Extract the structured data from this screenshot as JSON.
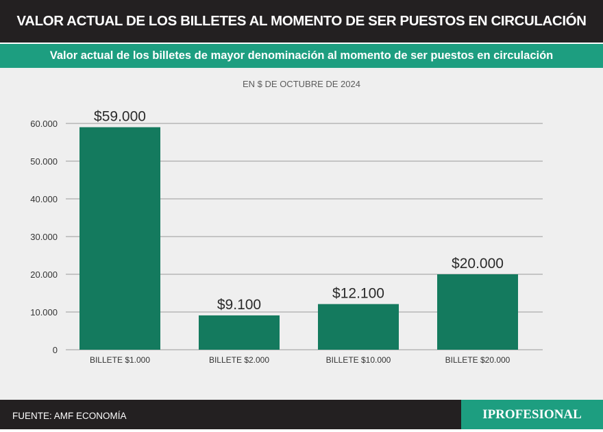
{
  "header": {
    "title": "VALOR ACTUAL DE LOS BILLETES AL MOMENTO DE SER PUESTOS EN CIRCULACIÓN",
    "subtitle": "Valor actual de los billetes de mayor denominación al momento de ser puestos en circulación"
  },
  "footer": {
    "source": "FUENTE: AMF ECONOMÍA",
    "brand": "IPROFESIONAL"
  },
  "colors": {
    "bar": "#147a5e",
    "accent": "#1d9e80",
    "dark": "#232021"
  },
  "chart_data": {
    "type": "bar",
    "subtitle": "EN $ DE OCTUBRE DE 2024",
    "categories": [
      "BILLETE $1.000",
      "BILLETE $2.000",
      "BILLETE $10.000",
      "BILLETE $20.000"
    ],
    "values": [
      59000,
      9100,
      12100,
      20000
    ],
    "data_labels": [
      "$59.000",
      "$9.100",
      "$12.100",
      "$20.000"
    ],
    "yticks": [
      0,
      10000,
      20000,
      30000,
      40000,
      50000,
      60000
    ],
    "ytick_labels": [
      "0",
      "10.000",
      "20.000",
      "30.000",
      "40.000",
      "50.000",
      "60.000"
    ],
    "ylim": [
      0,
      60000
    ],
    "grid": true,
    "legend": false
  }
}
